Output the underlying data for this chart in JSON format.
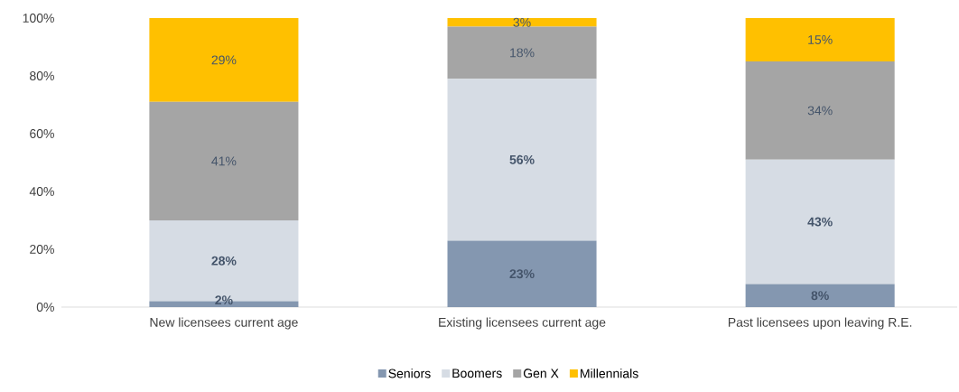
{
  "chart_data": {
    "type": "bar",
    "stacked": true,
    "categories": [
      "New licensees current age",
      "Existing licensees current age",
      "Past licensees upon leaving R.E."
    ],
    "series": [
      {
        "name": "Seniors",
        "color": "#8497b0",
        "values": [
          2,
          23,
          8
        ],
        "value_labels": [
          "2%",
          "23%",
          "8%"
        ]
      },
      {
        "name": "Boomers",
        "color": "#d6dce4",
        "values": [
          28,
          56,
          43
        ],
        "value_labels": [
          "28%",
          "56%",
          "43%"
        ]
      },
      {
        "name": "Gen X",
        "color": "#a5a5a5",
        "values": [
          41,
          18,
          34
        ],
        "value_labels": [
          "41%",
          "18%",
          "34%"
        ]
      },
      {
        "name": "Millennials",
        "color": "#ffc000",
        "values": [
          29,
          3,
          15
        ],
        "value_labels": [
          "29%",
          "3%",
          "15%"
        ]
      }
    ],
    "ylim": [
      0,
      100
    ],
    "yticks": [
      {
        "value": 0,
        "label": "0%"
      },
      {
        "value": 20,
        "label": "20%"
      },
      {
        "value": 40,
        "label": "40%"
      },
      {
        "value": 60,
        "label": "60%"
      },
      {
        "value": 80,
        "label": "80%"
      },
      {
        "value": 100,
        "label": "100%"
      }
    ],
    "legend": "bottom"
  }
}
